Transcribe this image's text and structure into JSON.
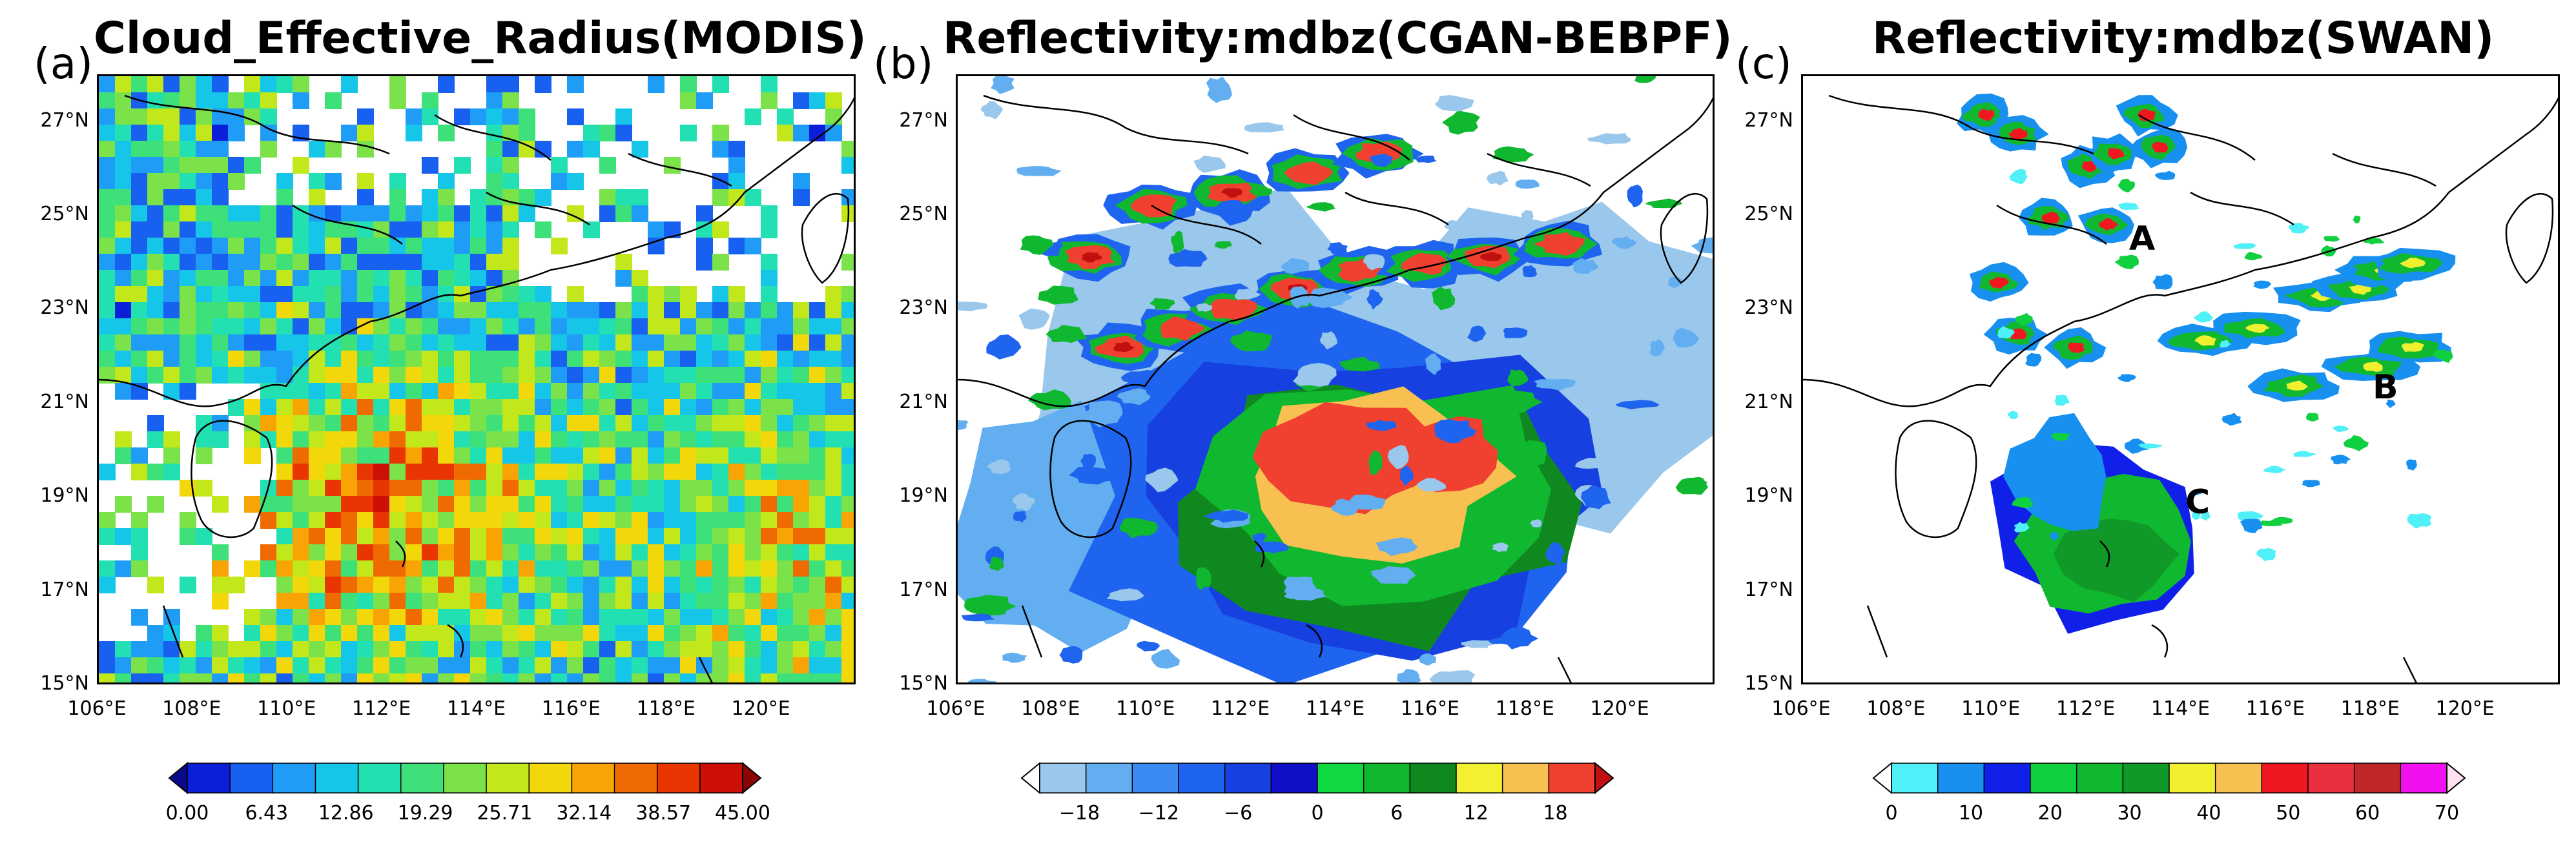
{
  "panels": [
    {
      "label": "(a)",
      "title": "Cloud_Effective_Radius(MODIS)",
      "points": []
    },
    {
      "label": "(b)",
      "title": "Reflectivity:mdbz(CGAN-BEBPF)",
      "points": []
    },
    {
      "label": "(c)",
      "title": "Reflectivity:mdbz(SWAN)",
      "points": [
        "A",
        "B",
        "C"
      ]
    }
  ],
  "chart_data": [
    {
      "type": "heatmap",
      "title": "Cloud_Effective_Radius(MODIS)",
      "xlim": [
        106,
        122
      ],
      "ylim": [
        15,
        28
      ],
      "x_ticks": [
        "106°E",
        "108°E",
        "110°E",
        "112°E",
        "114°E",
        "116°E",
        "118°E",
        "120°E"
      ],
      "y_ticks": [
        "15°N",
        "17°N",
        "19°N",
        "21°N",
        "23°N",
        "25°N",
        "27°N"
      ],
      "colorbar": {
        "ticks": [
          "0.00",
          "6.43",
          "12.86",
          "19.29",
          "25.71",
          "32.14",
          "38.57",
          "45.00"
        ],
        "range": [
          0,
          45
        ],
        "colors": [
          "#0a0a8c",
          "#0b1fd8",
          "#1760f0",
          "#1f9cf5",
          "#16c6e8",
          "#22e0b2",
          "#3ee07a",
          "#7be24a",
          "#c2e81c",
          "#f2d80a",
          "#f7a404",
          "#f06a02",
          "#e83502",
          "#cc1005",
          "#8c0505"
        ],
        "extend": "both"
      }
    },
    {
      "type": "heatmap",
      "title": "Reflectivity:mdbz(CGAN-BEBPF)",
      "xlim": [
        106,
        122
      ],
      "ylim": [
        15,
        28
      ],
      "x_ticks": [
        "106°E",
        "108°E",
        "110°E",
        "112°E",
        "114°E",
        "116°E",
        "118°E",
        "120°E"
      ],
      "y_ticks": [
        "15°N",
        "17°N",
        "19°N",
        "21°N",
        "23°N",
        "25°N",
        "27°N"
      ],
      "colorbar": {
        "ticks": [
          "−18",
          "−12",
          "−6",
          "0",
          "6",
          "12",
          "18"
        ],
        "range": [
          -21,
          21
        ],
        "colors": [
          "#ffffff",
          "#9ac8ec",
          "#62aef0",
          "#3a8cf2",
          "#1f64ee",
          "#1640e0",
          "#1010c8",
          "#10d840",
          "#10b830",
          "#108820",
          "#f2f030",
          "#f8c050",
          "#f04030",
          "#c01010"
        ],
        "extend": "both"
      }
    },
    {
      "type": "heatmap",
      "title": "Reflectivity:mdbz(SWAN)",
      "xlim": [
        106,
        122
      ],
      "ylim": [
        15,
        28
      ],
      "x_ticks": [
        "106°E",
        "108°E",
        "110°E",
        "112°E",
        "114°E",
        "116°E",
        "118°E",
        "120°E"
      ],
      "y_ticks": [
        "15°N",
        "17°N",
        "19°N",
        "21°N",
        "23°N",
        "25°N",
        "27°N"
      ],
      "annotations": [
        "A",
        "B",
        "C"
      ],
      "colorbar": {
        "ticks": [
          "0",
          "10",
          "20",
          "30",
          "40",
          "50",
          "60",
          "70"
        ],
        "range": [
          0,
          70
        ],
        "colors": [
          "#ffffff",
          "#50f0f8",
          "#1890f0",
          "#1020e8",
          "#10d040",
          "#10b830",
          "#109828",
          "#f0f030",
          "#f8c050",
          "#f01820",
          "#e83040",
          "#c02828",
          "#f010f0",
          "#ffe0f0"
        ],
        "extend": "both"
      }
    }
  ]
}
